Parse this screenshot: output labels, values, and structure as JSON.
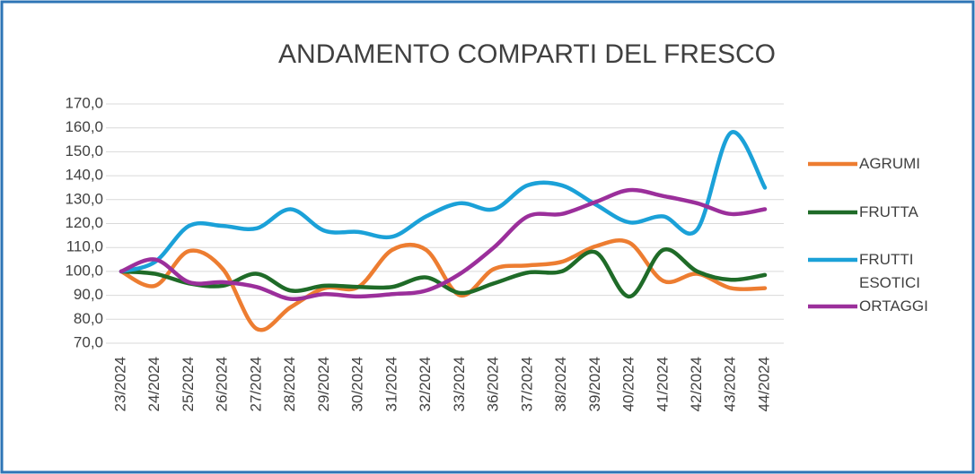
{
  "chart_data": {
    "type": "line",
    "title": "ANDAMENTO COMPARTI DEL FRESCO",
    "categories": [
      "23/2024",
      "24/2024",
      "25/2024",
      "26/2024",
      "27/2024",
      "28/2024",
      "29/2024",
      "30/2024",
      "31/2024",
      "32/2024",
      "33/2024",
      "36/2024",
      "37/2024",
      "38/2024",
      "39/2024",
      "40/2024",
      "41/2024",
      "42/2024",
      "43/2024",
      "44/2024"
    ],
    "series": [
      {
        "name": "AGRUMI",
        "color": "#ed7d31",
        "values": [
          100,
          94,
          108.5,
          101,
          76,
          85,
          93,
          93.5,
          109,
          109,
          90,
          101,
          102.5,
          104,
          110.5,
          112,
          96,
          99,
          93,
          93
        ]
      },
      {
        "name": "FRUTTA",
        "color": "#1f6b28",
        "values": [
          100,
          99,
          95,
          94,
          99,
          92,
          94,
          93.5,
          93.5,
          97.5,
          91,
          95,
          99.5,
          100,
          108,
          89.5,
          109,
          100,
          96.5,
          98.5
        ]
      },
      {
        "name": "FRUTTI ESOTICI",
        "color": "#1ba1d8",
        "values": [
          100,
          104,
          119,
          119,
          118,
          126,
          117,
          116.5,
          114.5,
          123,
          128.5,
          126,
          136,
          136,
          128,
          120.5,
          123,
          117.5,
          158,
          135
        ]
      },
      {
        "name": "ORTAGGI",
        "color": "#9b2f9b",
        "values": [
          100,
          105,
          95.5,
          95.5,
          93.5,
          88.5,
          90.5,
          89.5,
          90.5,
          92,
          99,
          110,
          123,
          124,
          129,
          134,
          131.5,
          128.5,
          124,
          126
        ]
      }
    ],
    "ylim": [
      70,
      170
    ],
    "yticks": [
      {
        "value": 70,
        "label": "70,0"
      },
      {
        "value": 80,
        "label": "80,0"
      },
      {
        "value": 90,
        "label": "90,0"
      },
      {
        "value": 100,
        "label": "100,0"
      },
      {
        "value": 110,
        "label": "110,0"
      },
      {
        "value": 120,
        "label": "120,0"
      },
      {
        "value": 130,
        "label": "130,0"
      },
      {
        "value": 140,
        "label": "140,0"
      },
      {
        "value": 150,
        "label": "150,0"
      },
      {
        "value": 160,
        "label": "160,0"
      },
      {
        "value": 170,
        "label": "170,0"
      }
    ],
    "grid": true,
    "legend": "right",
    "smooth": true
  }
}
